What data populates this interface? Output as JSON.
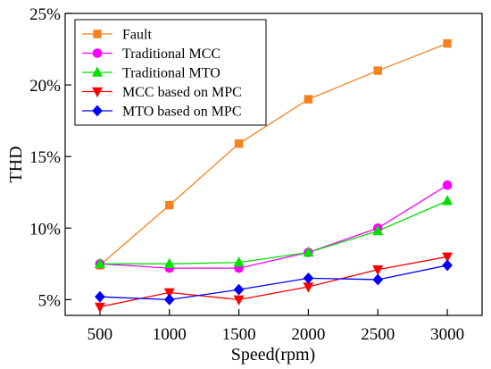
{
  "chart_data": {
    "type": "line",
    "xlabel": "Speed(rpm)",
    "ylabel": "THD",
    "x": [
      500,
      1000,
      1500,
      2000,
      2500,
      3000
    ],
    "x_tick_labels": [
      "500",
      "1000",
      "1500",
      "2000",
      "2500",
      "3000"
    ],
    "y_ticks": [
      5,
      10,
      15,
      20,
      25
    ],
    "y_tick_labels": [
      "5%",
      "10%",
      "15%",
      "20%",
      "25%"
    ],
    "xlim": [
      250,
      3250
    ],
    "ylim": [
      3.9,
      25
    ],
    "legend_position": "top-left",
    "series": [
      {
        "name": "Fault",
        "color": "#f5821f",
        "marker": "square",
        "values": [
          7.4,
          11.6,
          15.9,
          19.0,
          21.0,
          22.9
        ]
      },
      {
        "name": "Traditional MCC",
        "color": "#ff00ff",
        "marker": "circle",
        "values": [
          7.5,
          7.2,
          7.2,
          8.3,
          10.0,
          13.0
        ]
      },
      {
        "name": "Traditional MTO",
        "color": "#00e000",
        "marker": "triangle-up",
        "values": [
          7.5,
          7.5,
          7.6,
          8.3,
          9.8,
          11.9
        ]
      },
      {
        "name": "MCC based on MPC",
        "color": "#ff0000",
        "marker": "triangle-down",
        "values": [
          4.5,
          5.5,
          5.0,
          5.9,
          7.1,
          8.0
        ]
      },
      {
        "name": "MTO based on MPC",
        "color": "#0000ff",
        "marker": "diamond",
        "values": [
          5.2,
          5.0,
          5.7,
          6.5,
          6.4,
          7.4
        ]
      }
    ]
  }
}
